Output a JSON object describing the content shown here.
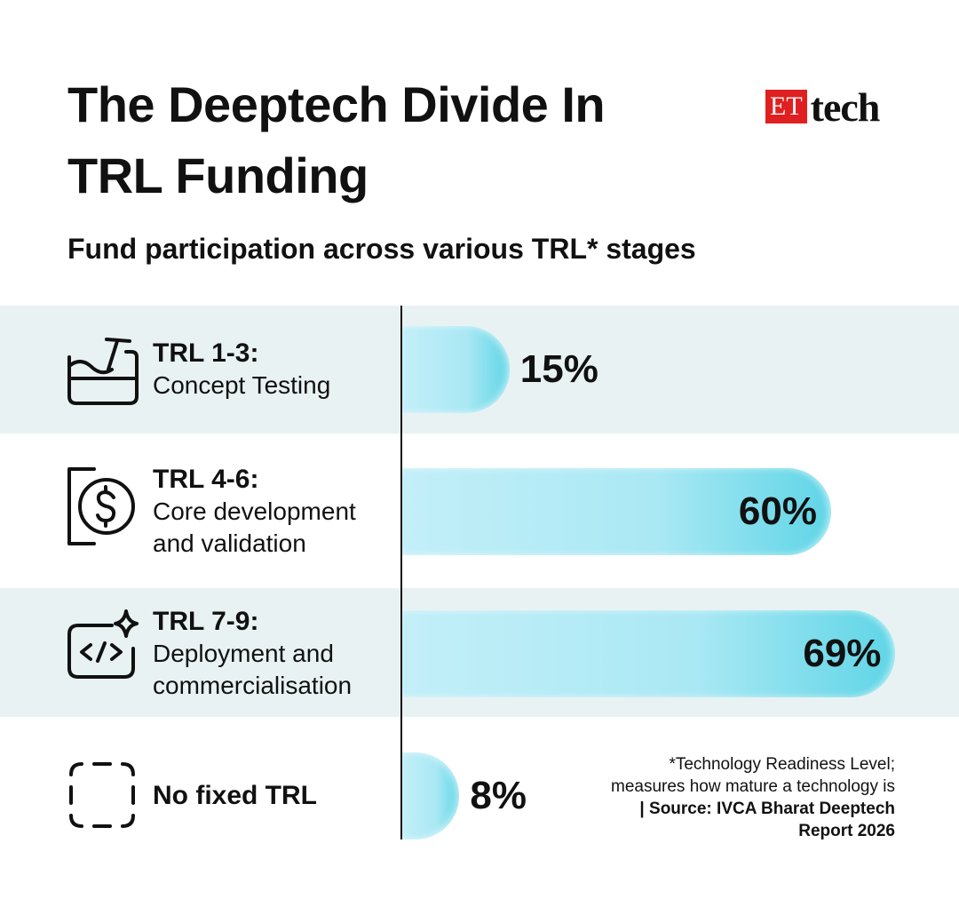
{
  "chart_data": {
    "type": "bar",
    "orientation": "horizontal",
    "title": "The Deeptech Divide In TRL Funding",
    "subtitle": "Fund participation across various TRL* stages",
    "categories": [
      "TRL 1-3:",
      "TRL 4-6:",
      "TRL 7-9:",
      "No fixed TRL"
    ],
    "descriptions": [
      "Concept Testing",
      "Core development and validation",
      "Deployment and commercialisation",
      null
    ],
    "values": [
      15,
      60,
      69,
      8
    ],
    "value_labels": [
      "15%",
      "60%",
      "69%",
      "8%"
    ],
    "note": "*Technology Readiness Level; measures how mature a technology is",
    "source": "| Source: IVCA Bharat Deeptech Report 2026",
    "logo": {
      "et": "ET",
      "tech": "tech"
    }
  }
}
